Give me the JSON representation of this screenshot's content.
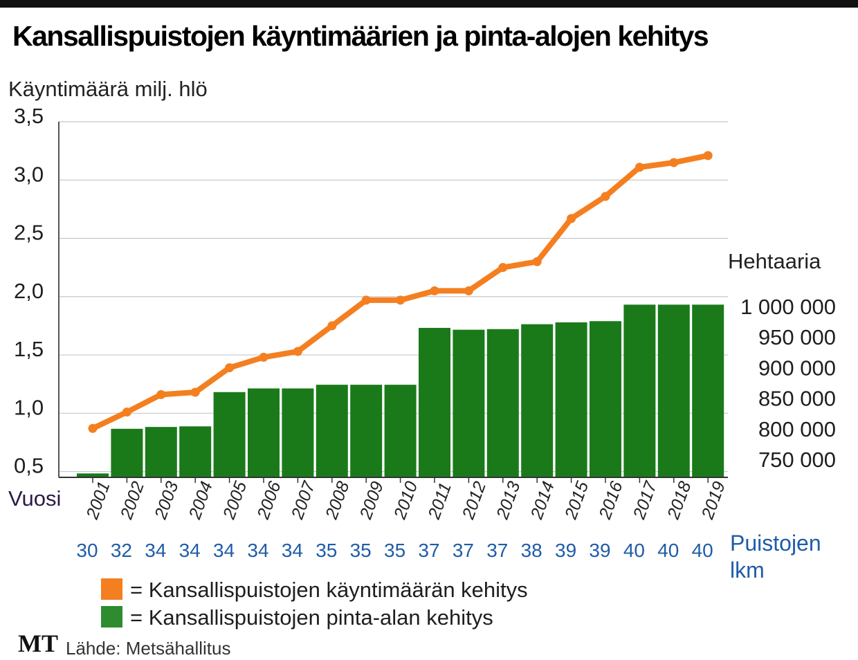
{
  "title": "Kansallispuistojen käyntimäärien ja pinta-alojen kehitys",
  "chart_data": {
    "type": "bar",
    "categories": [
      "2001",
      "2002",
      "2003",
      "2004",
      "2005",
      "2006",
      "2007",
      "2008",
      "2009",
      "2010",
      "2011",
      "2012",
      "2013",
      "2014",
      "2015",
      "2016",
      "2017",
      "2018",
      "2019"
    ],
    "x_axis_label": "Vuosi",
    "left_axis": {
      "label": "Käyntimäärä milj. hlö",
      "ticks": [
        "0,5",
        "1,0",
        "1,5",
        "2,0",
        "2,5",
        "3,0",
        "3,5"
      ],
      "tick_values": [
        0.5,
        1.0,
        1.5,
        2.0,
        2.5,
        3.0,
        3.5
      ],
      "ylim": [
        0.45,
        3.5
      ]
    },
    "right_axis": {
      "label": "Hehtaaria",
      "ticks": [
        "750 000",
        "800 000",
        "850 000",
        "900 000",
        "950 000",
        "1 000 000"
      ],
      "tick_values": [
        750000,
        800000,
        850000,
        900000,
        950000,
        1000000
      ]
    },
    "grid": true,
    "series": [
      {
        "name": "Kansallispuistojen käyntimäärän kehitys",
        "type": "line",
        "axis": "left",
        "color": "#f47f20",
        "values": [
          0.87,
          1.01,
          1.16,
          1.18,
          1.39,
          1.48,
          1.53,
          1.75,
          1.97,
          1.97,
          2.05,
          2.05,
          2.25,
          2.3,
          2.67,
          2.86,
          3.11,
          3.15,
          3.21
        ]
      },
      {
        "name": "Kansallispuistojen pinta-alan kehitys",
        "type": "bar",
        "axis": "right",
        "color": "#1a7a1a",
        "values": [
          727000,
          800000,
          803000,
          804000,
          860000,
          866000,
          866000,
          872000,
          872000,
          872000,
          965000,
          962000,
          963000,
          971000,
          974000,
          976000,
          1003000,
          1003000,
          1003000
        ]
      }
    ],
    "park_counts": [
      "30",
      "32",
      "34",
      "34",
      "34",
      "34",
      "34",
      "35",
      "35",
      "35",
      "37",
      "37",
      "37",
      "38",
      "39",
      "39",
      "40",
      "40",
      "40"
    ],
    "park_count_label": [
      "Puistojen",
      "lkm"
    ]
  },
  "legend": [
    {
      "text": "= Kansallispuistojen käyntimäärän kehitys",
      "color": "#f47f20"
    },
    {
      "text": "= Kansallispuistojen pinta-alan kehitys",
      "color": "#2e8b2e"
    }
  ],
  "logo": "MT",
  "source": "Lähde: Metsähallitus"
}
